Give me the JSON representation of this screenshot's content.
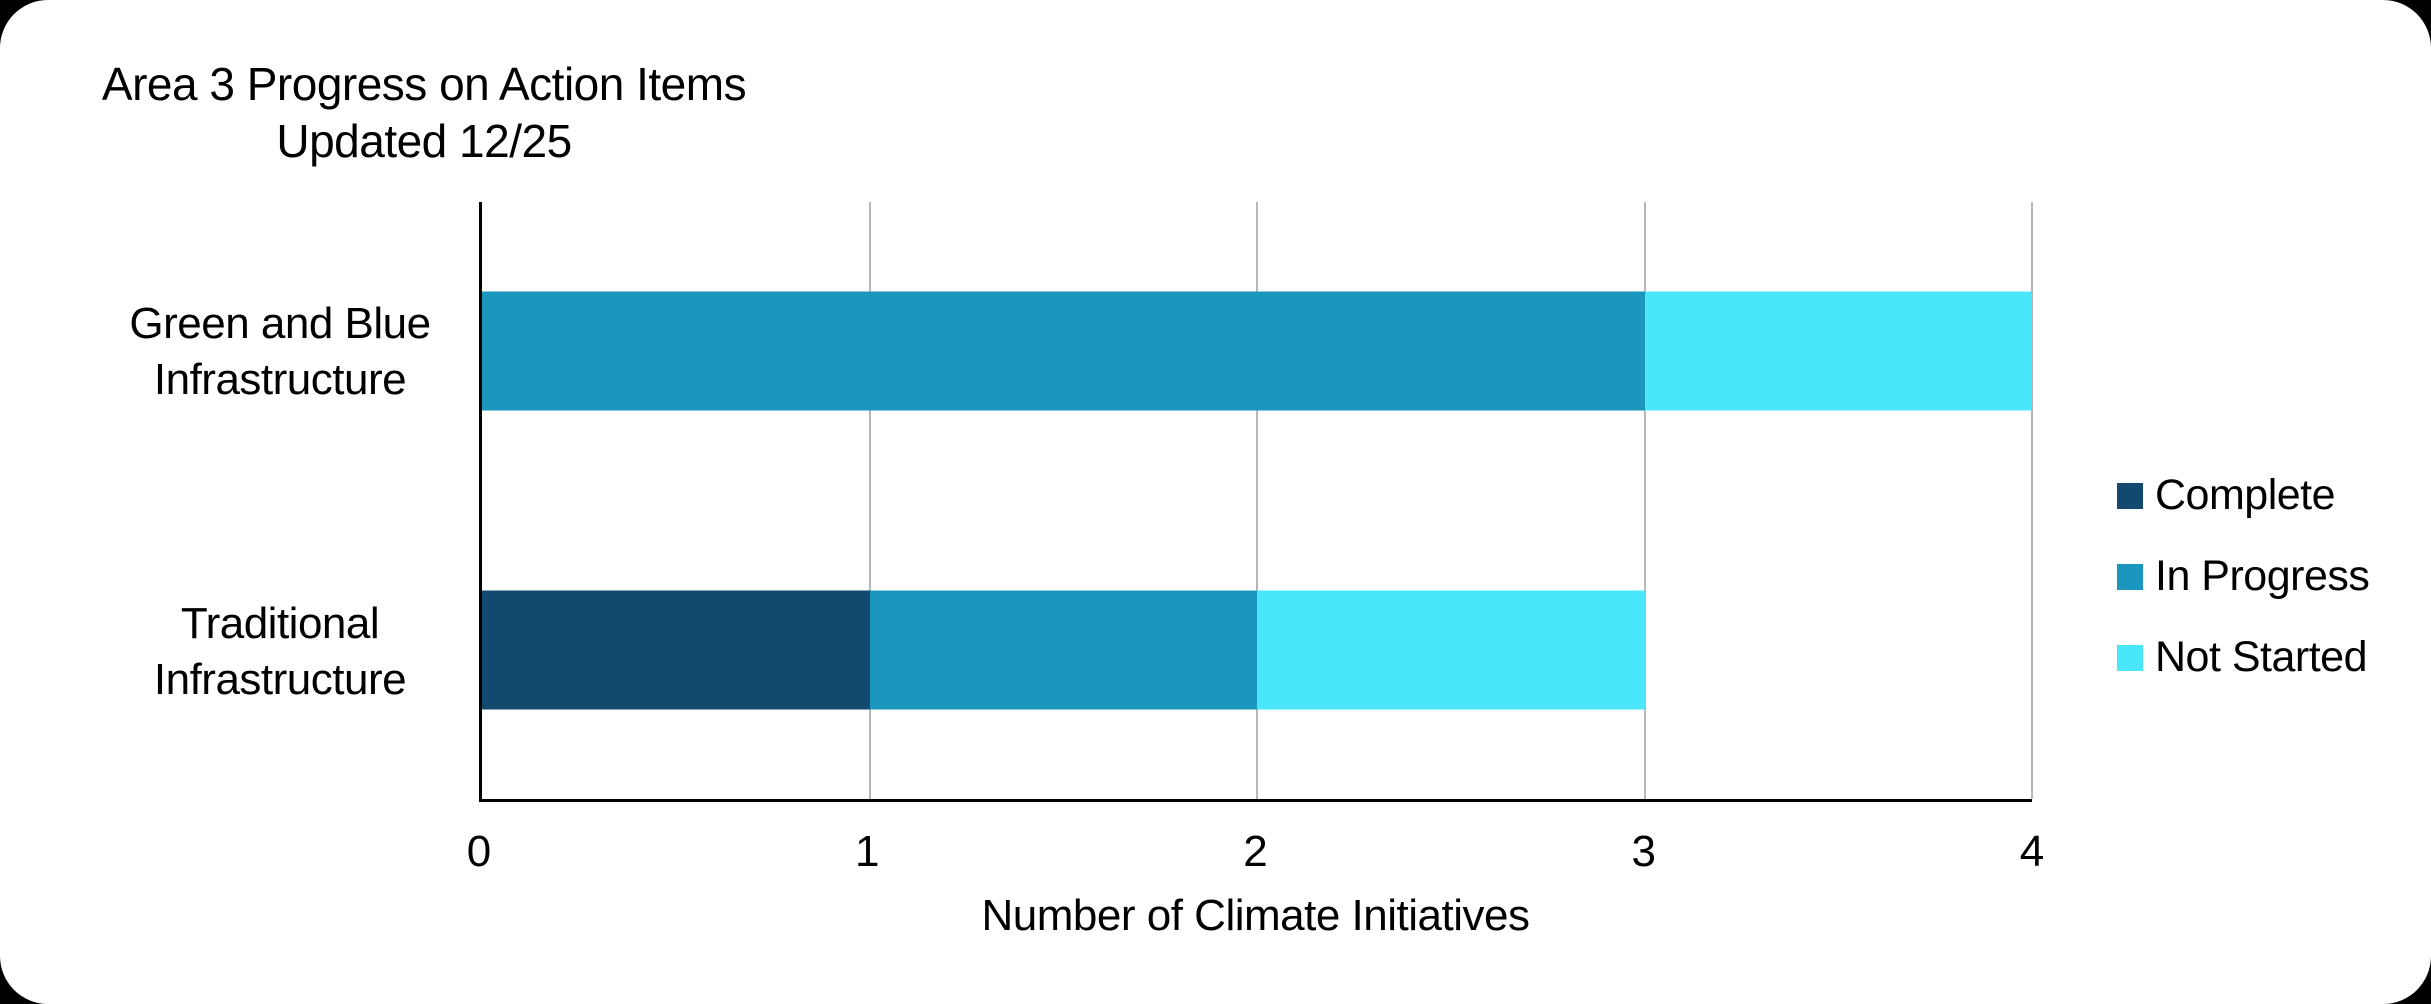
{
  "chart_data": {
    "type": "bar",
    "orientation": "horizontal",
    "stacked": true,
    "title_lines": [
      "Area 3 Progress on Action Items",
      "Updated 12/25"
    ],
    "categories": [
      "Green and Blue\nInfrastructure",
      "Traditional\nInfrastructure"
    ],
    "series": [
      {
        "name": "Complete",
        "color": "#114a6e",
        "values": [
          0,
          1
        ]
      },
      {
        "name": "In Progress",
        "color": "#1b96bf",
        "values": [
          3,
          1
        ]
      },
      {
        "name": "Not Started",
        "color": "#4ae7fb",
        "values": [
          1,
          1
        ]
      }
    ],
    "xlabel": "Number of Climate Initiatives",
    "x_ticks": [
      "0",
      "1",
      "2",
      "3",
      "4"
    ],
    "xlim": [
      0,
      4
    ],
    "grid": true,
    "legend_position": "right",
    "axis_color": "#000000",
    "gridline_color": "#b7b7b7",
    "background_color": "#ffffff"
  }
}
